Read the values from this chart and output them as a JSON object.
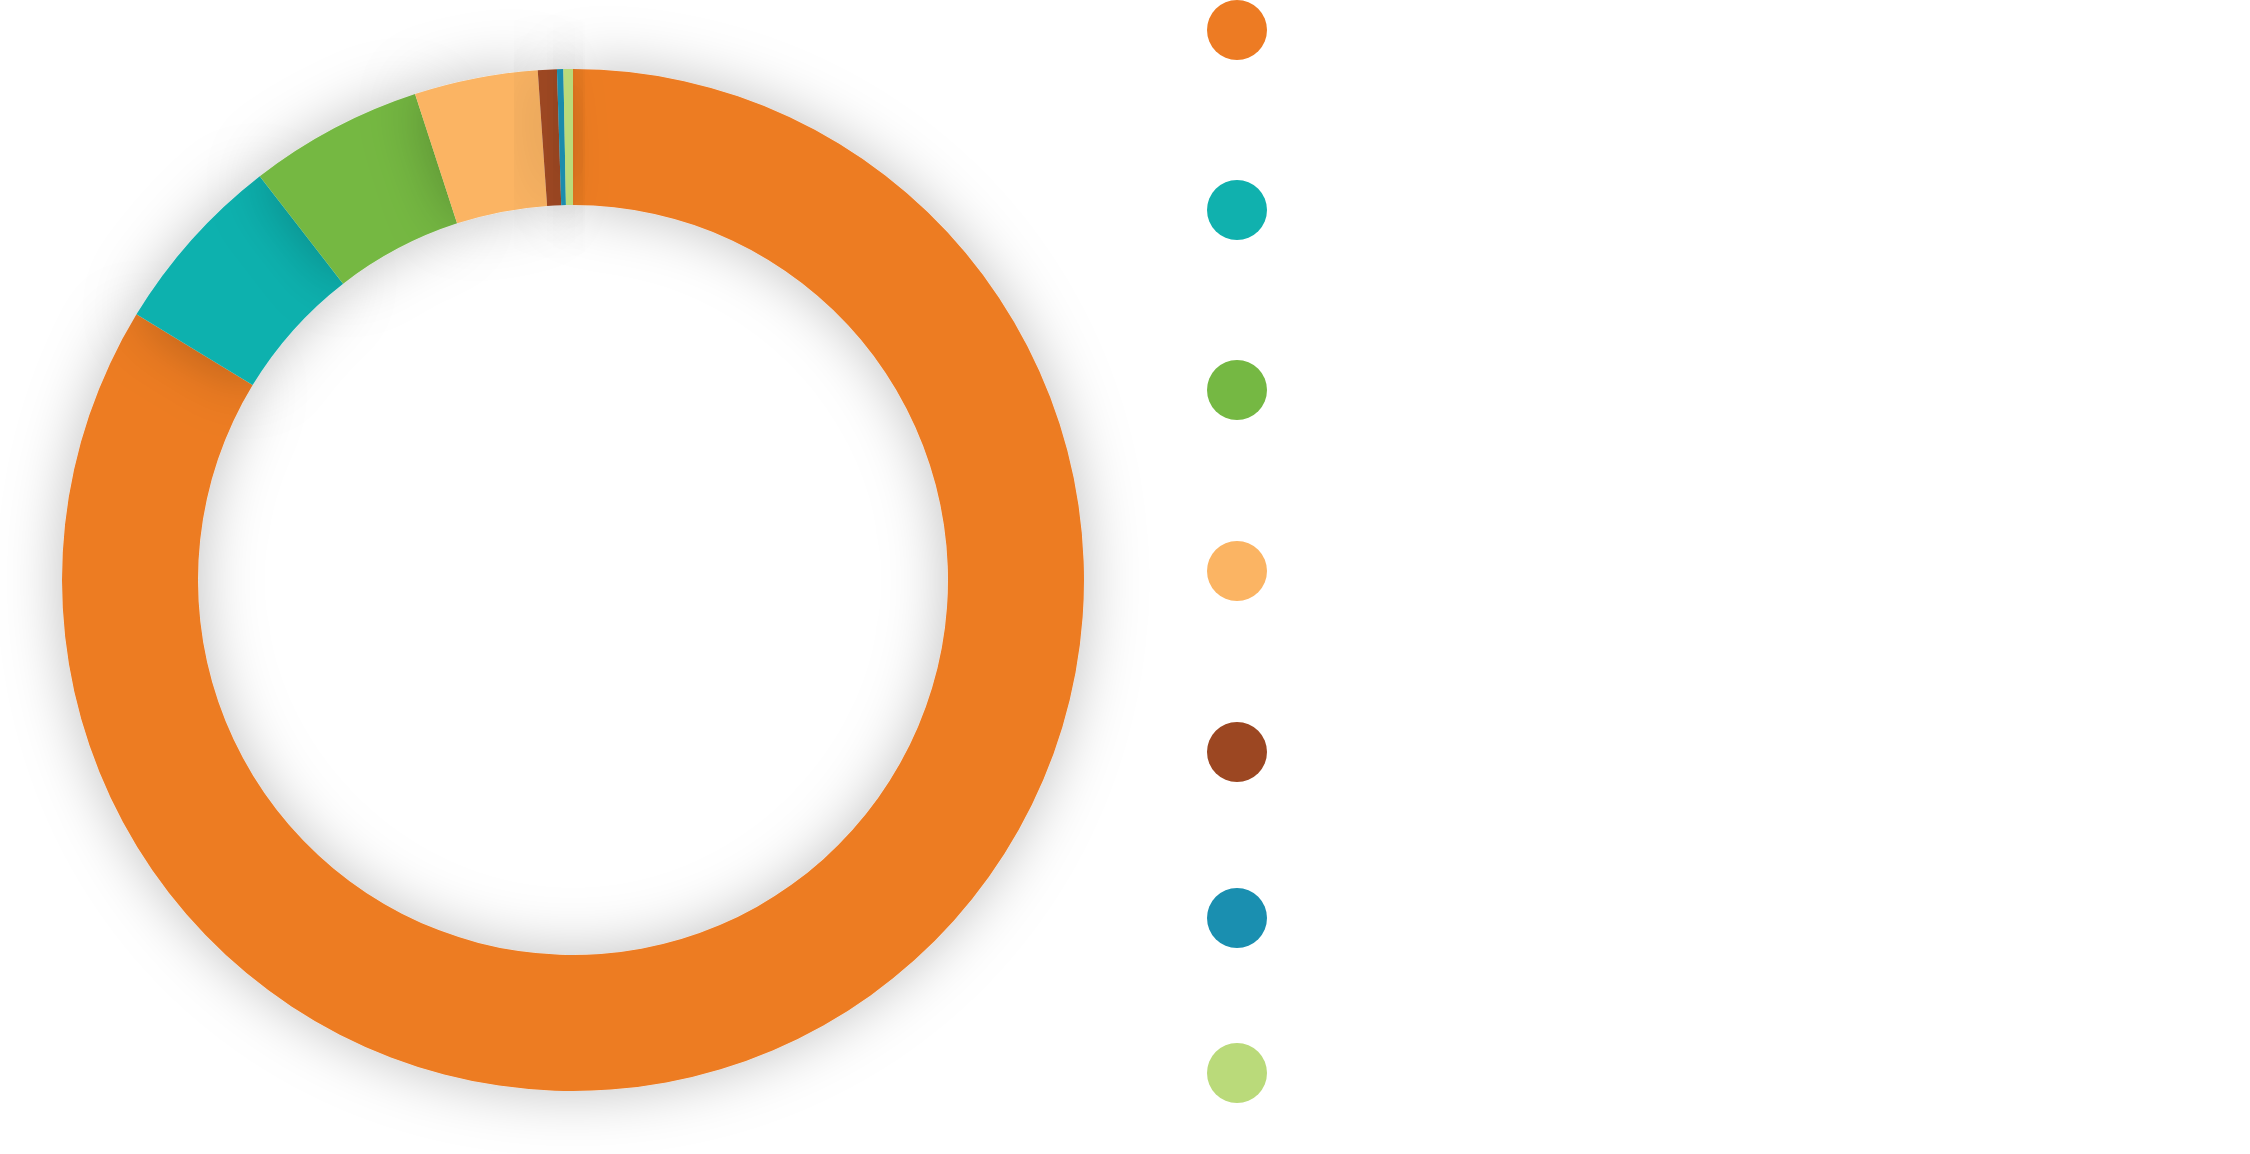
{
  "chart_data": {
    "type": "donut",
    "categories": [
      null,
      null,
      null,
      null,
      null,
      null,
      null
    ],
    "values": [
      83.7,
      5.8,
      5.5,
      3.9,
      0.6,
      0.2,
      0.3
    ],
    "colors": [
      "#ed7b23",
      "#10b1ae",
      "#75b843",
      "#fbb463",
      "#9c4722",
      "#1a8fb0",
      "#bada7a"
    ]
  }
}
